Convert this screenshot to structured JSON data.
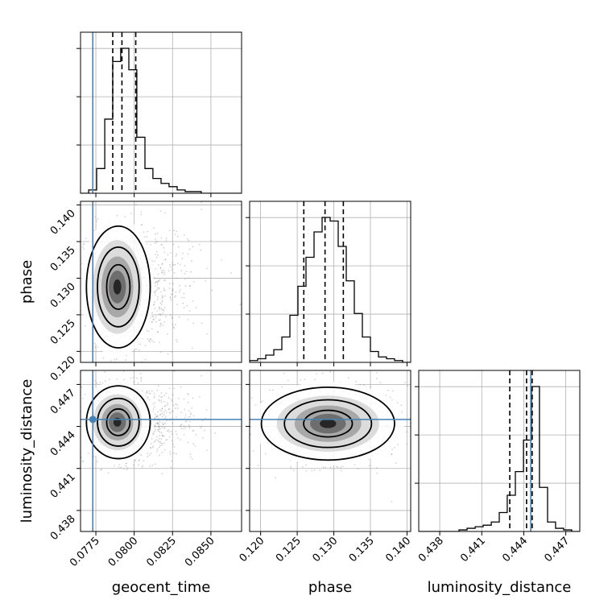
{
  "colors": {
    "truth": "#4682b4",
    "hist": "#000000",
    "grid": "#b0b0b0",
    "scatter": "#7f7f7f"
  },
  "chart_data": {
    "type": "corner",
    "parameters": [
      "geocent_time",
      "phase",
      "luminosity_distance"
    ],
    "truths": {
      "geocent_time": 0.0773,
      "phase": null,
      "luminosity_distance": 0.4445
    },
    "ranges": {
      "geocent_time": [
        0.0765,
        0.087
      ],
      "phase": [
        0.1185,
        0.1405
      ],
      "luminosity_distance": [
        0.4365,
        0.448
      ]
    },
    "ticks": {
      "geocent_time": [
        0.0775,
        0.08,
        0.0825,
        0.085
      ],
      "phase": [
        0.12,
        0.125,
        0.13,
        0.135,
        0.14
      ],
      "luminosity_distance": [
        0.438,
        0.441,
        0.444,
        0.447
      ]
    },
    "tick_labels": {
      "geocent_time": [
        "0.0775",
        "0.0800",
        "0.0825",
        "0.0850"
      ],
      "phase": [
        "0.120",
        "0.125",
        "0.130",
        "0.135",
        "0.140"
      ],
      "luminosity_distance": [
        "0.438",
        "0.441",
        "0.444",
        "0.447"
      ]
    },
    "quantiles": {
      "geocent_time": [
        0.0786,
        0.0792,
        0.0801
      ],
      "phase": [
        0.1259,
        0.1288,
        0.1313
      ],
      "luminosity_distance": [
        0.443,
        0.4442,
        0.4446
      ]
    },
    "histograms": {
      "geocent_time": {
        "edges": [
          0.0765,
          0.07703,
          0.07755,
          0.07808,
          0.0786,
          0.07912,
          0.07965,
          0.08017,
          0.0807,
          0.08122,
          0.08175,
          0.08227,
          0.0828,
          0.08332,
          0.08385,
          0.08437,
          0.0849,
          0.08542,
          0.08595,
          0.08647,
          0.087
        ],
        "counts": [
          0,
          2,
          15,
          45,
          80,
          88,
          75,
          34,
          15,
          9,
          6,
          4,
          2,
          1,
          1,
          0,
          0,
          0,
          0,
          0
        ]
      },
      "phase": {
        "edges": [
          0.1185,
          0.1196,
          0.1207,
          0.1218,
          0.1229,
          0.124,
          0.1251,
          0.1262,
          0.1273,
          0.1284,
          0.1295,
          0.1306,
          0.1317,
          0.1328,
          0.1339,
          0.135,
          0.1361,
          0.1372,
          0.1383,
          0.1394,
          0.1405
        ],
        "counts": [
          1,
          2,
          4,
          7,
          14,
          26,
          42,
          58,
          72,
          80,
          78,
          64,
          45,
          27,
          14,
          6,
          3,
          2,
          1,
          0
        ]
      },
      "luminosity_distance": {
        "edges": [
          0.4365,
          0.43708,
          0.43765,
          0.43822,
          0.4388,
          0.43938,
          0.43995,
          0.44053,
          0.4411,
          0.44168,
          0.44225,
          0.44282,
          0.4434,
          0.44398,
          0.44455,
          0.44512,
          0.4457,
          0.44627,
          0.44685,
          0.44742,
          0.448
        ],
        "counts": [
          0,
          0,
          0,
          0,
          0,
          1,
          2,
          3,
          4,
          6,
          12,
          23,
          38,
          58,
          92,
          28,
          6,
          2,
          1,
          0
        ]
      }
    },
    "posterior_2d": {
      "phase_vs_geocent_time": {
        "x_mean": 0.0789,
        "y_mean": 0.1288,
        "x_sd": 0.0008,
        "y_sd": 0.0032,
        "x_tail": 0.0016
      },
      "luminosity_distance_vs_geocent_time": {
        "x_mean": 0.0789,
        "y_mean": 0.4443,
        "x_sd": 0.0008,
        "y_sd": 0.001,
        "x_tail": 0.0016
      },
      "luminosity_distance_vs_phase": {
        "x_mean": 0.1292,
        "y_mean": 0.4442,
        "x_sd": 0.0035,
        "y_sd": 0.001
      }
    },
    "grid": true
  }
}
